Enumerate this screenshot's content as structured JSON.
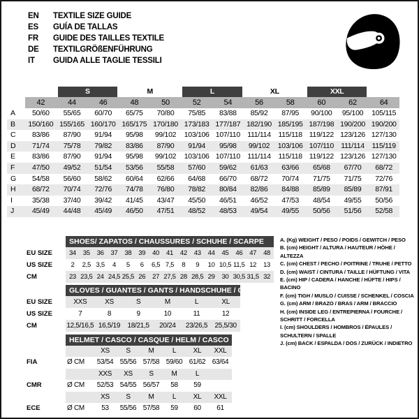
{
  "header": {
    "languages": [
      {
        "code": "EN",
        "label": "TEXTILE SIZE GUIDE"
      },
      {
        "code": "ES",
        "label": "GUÍA DE TALLAS"
      },
      {
        "code": "FR",
        "label": "GUIDE DES TAILLES TEXTILE"
      },
      {
        "code": "DE",
        "label": "TEXTILGRÖßENFÜHRUNG"
      },
      {
        "code": "IT",
        "label": "GUIDA ALLE TAGLIE TESSILI"
      }
    ]
  },
  "logo": {
    "icon": "racing-helmet-icon"
  },
  "main_table": {
    "size_groups": [
      {
        "label": "S",
        "dark": true
      },
      {
        "label": "M",
        "dark": false
      },
      {
        "label": "L",
        "dark": true
      },
      {
        "label": "XL",
        "dark": false
      },
      {
        "label": "XXL",
        "dark": true
      }
    ],
    "sizes": [
      "42",
      "44",
      "46",
      "48",
      "50",
      "52",
      "54",
      "56",
      "58",
      "60",
      "62",
      "64"
    ],
    "rows": [
      {
        "key": "A",
        "values": [
          "50/60",
          "55/65",
          "60/70",
          "65/75",
          "70/80",
          "75/85",
          "83/88",
          "85/92",
          "87/95",
          "90/100",
          "95/100",
          "105/115"
        ]
      },
      {
        "key": "B",
        "values": [
          "150/160",
          "155/165",
          "160/170",
          "165/175",
          "170/180",
          "173/183",
          "177/187",
          "182/190",
          "185/195",
          "187/198",
          "190/200",
          "190/200"
        ]
      },
      {
        "key": "C",
        "values": [
          "83/86",
          "87/90",
          "91/94",
          "95/98",
          "99/102",
          "103/106",
          "107/110",
          "111/114",
          "115/118",
          "119/122",
          "123/126",
          "127/130"
        ]
      },
      {
        "key": "D",
        "values": [
          "71/74",
          "75/78",
          "79/82",
          "83/86",
          "87/90",
          "91/94",
          "95/98",
          "99/102",
          "103/106",
          "107/110",
          "111/114",
          "115/119"
        ]
      },
      {
        "key": "E",
        "values": [
          "83/86",
          "87/90",
          "91/94",
          "95/98",
          "99/102",
          "103/106",
          "107/110",
          "111/114",
          "115/118",
          "119/122",
          "123/126",
          "127/130"
        ]
      },
      {
        "key": "F",
        "values": [
          "47/50",
          "49/52",
          "51/54",
          "53/56",
          "55/58",
          "57/60",
          "59/62",
          "61/63",
          "63/66",
          "65/68",
          "67/70",
          "68/72"
        ]
      },
      {
        "key": "G",
        "values": [
          "54/58",
          "56/60",
          "58/62",
          "60/64",
          "62/66",
          "64/68",
          "66/70",
          "68/72",
          "70/74",
          "71/75",
          "71/75",
          "72/76"
        ]
      },
      {
        "key": "H",
        "values": [
          "68/72",
          "70/74",
          "72/76",
          "74/78",
          "76/80",
          "78/82",
          "80/84",
          "82/86",
          "84/88",
          "85/89",
          "85/89",
          "87/91"
        ]
      },
      {
        "key": "I",
        "values": [
          "35/38",
          "37/40",
          "39/42",
          "41/45",
          "43/47",
          "45/50",
          "46/51",
          "46/52",
          "47/53",
          "48/54",
          "49/55",
          "50/56"
        ]
      },
      {
        "key": "J",
        "values": [
          "45/49",
          "44/48",
          "45/49",
          "46/50",
          "47/51",
          "48/52",
          "48/53",
          "49/54",
          "49/55",
          "50/56",
          "51/56",
          "52/58"
        ]
      }
    ]
  },
  "shoes": {
    "title": "SHOES/ ZAPATOS / CHAUSSURES / SCHUHE / SCARPE",
    "rows": [
      {
        "label": "EU SIZE",
        "values": [
          "34",
          "35",
          "36",
          "37",
          "38",
          "39",
          "40",
          "41",
          "42",
          "43",
          "44",
          "45",
          "46",
          "47",
          "48"
        ]
      },
      {
        "label": "US SIZE",
        "values": [
          "2",
          "2,5",
          "3,5",
          "4",
          "5",
          "6",
          "6,5",
          "7,5",
          "8",
          "9",
          "10",
          "10,5",
          "11,5",
          "12",
          "13"
        ]
      },
      {
        "label": "CM",
        "values": [
          "23",
          "23,5",
          "24",
          "24,5",
          "25,5",
          "26",
          "27",
          "27,5",
          "28",
          "28,5",
          "29",
          "30",
          "30,5",
          "31,5",
          "32"
        ]
      }
    ]
  },
  "gloves": {
    "title": "GLOVES / GUANTES / GANTS / HANDSCHUHE / GUANTI",
    "rows": [
      {
        "label": "EU SIZE",
        "values": [
          "XXS",
          "XS",
          "S",
          "M",
          "L",
          "XL"
        ]
      },
      {
        "label": "US SIZE",
        "values": [
          "7",
          "8",
          "9",
          "10",
          "11",
          "12"
        ]
      },
      {
        "label": "CM",
        "values": [
          "12,5/16,5",
          "16,5/19",
          "18/21,5",
          "20/24",
          "23/26,5",
          "25,5/30"
        ]
      }
    ]
  },
  "helmet": {
    "title": "HELMET / CASCO / CASQUE / HELM / CASCO",
    "groups": [
      {
        "label": "FIA",
        "unit": "Ø CM",
        "sizes": [
          "XS",
          "S",
          "M",
          "L",
          "XL",
          "XXL"
        ],
        "values": [
          "53/54",
          "55/56",
          "57/58",
          "59/60",
          "61/62",
          "63/64"
        ]
      },
      {
        "label": "CMR",
        "unit": "Ø CM",
        "sizes": [
          "XXS",
          "XS",
          "S",
          "M",
          "L",
          ""
        ],
        "values": [
          "52/53",
          "54/55",
          "56/57",
          "58",
          "59",
          ""
        ]
      },
      {
        "label": "ECE",
        "unit": "Ø CM",
        "sizes": [
          "XS",
          "S",
          "M",
          "L",
          "XL",
          "XXL"
        ],
        "values": [
          "53",
          "55/56",
          "57/58",
          "59",
          "60",
          "61"
        ]
      }
    ]
  },
  "legend": {
    "items": [
      "A. (Kg) WEIGHT / PESO / POIDS / GEWITCH / PESO",
      "B. (cm) HEIGHT / ALTURA / HAUTEUR / HÖHE / ALTEZZA",
      "C. (cm) CHEST / PECHO / POITRINE / TRUHE / PETTO",
      "D. (cm) WAIST / CINTURA / TAILLE / HÜFTUNG / VITA",
      "E. (cm) HIP / CADERA / HANCHE / HÜFTE / HIPS / BACINO",
      "F. (cm) TIGH / MUSLO / CUISSE / SCHENKEL / COSCIA",
      "G. (cm) ARM / BRAZO / BRAS / ARM / BRACCIO",
      "H. (cm) INSIDE LEG / ENTREPIERNA / FOURCHE / SCHRITT / FORCELLA",
      "I. (cm) SHOULDERS / HOMBROS / ÉPAULES / SCHULTERN / SPALLE",
      "J. (cm) BACK / ESPALDA / DOS / ZURÜCK / INDIETRO"
    ]
  },
  "colors": {
    "header_bar": "#3f3f3f",
    "sizes_row": "#b4b4b4",
    "stripe": "#e9e9e9",
    "stripe2": "#e6e6e6",
    "text": "#000000",
    "bar_text": "#ffffff"
  }
}
